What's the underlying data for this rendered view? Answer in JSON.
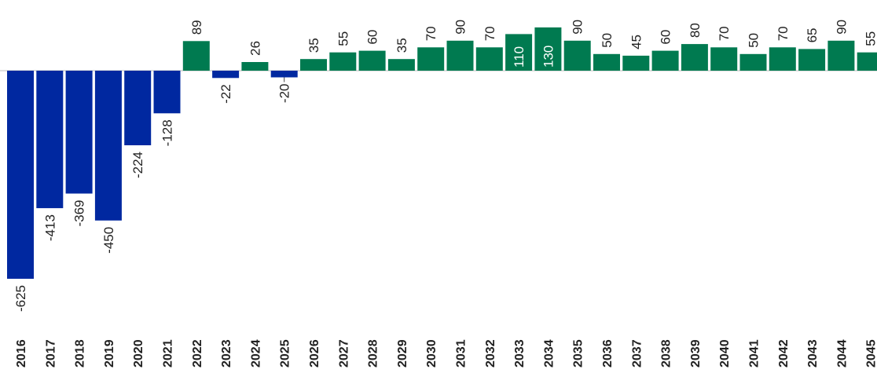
{
  "chart_data": {
    "type": "bar",
    "title": "",
    "xlabel": "",
    "ylabel": "",
    "ylim": [
      -625,
      130
    ],
    "grid": false,
    "legend": "none",
    "colors": {
      "negative": "#0028A0",
      "positive": "#007A50",
      "forecast_negative": "#0028A0",
      "forecast_positive": "#007A50"
    },
    "categories": [
      "2016",
      "2017",
      "2018",
      "2019",
      "2020",
      "2021",
      "2022",
      "2023",
      "2024",
      "2025",
      "2026",
      "2027",
      "2028",
      "2029",
      "2030",
      "2031",
      "2032",
      "2033",
      "2034",
      "2035",
      "2036",
      "2037",
      "2038",
      "2039",
      "2040",
      "2041",
      "2042",
      "2043",
      "2044",
      "2045"
    ],
    "values": [
      -625,
      -413,
      -369,
      -450,
      -224,
      -128,
      89,
      -22,
      26,
      -20,
      35,
      55,
      60,
      35,
      70,
      90,
      70,
      110,
      130,
      90,
      50,
      45,
      60,
      80,
      70,
      50,
      70,
      65,
      90,
      55
    ],
    "labels": [
      "-625",
      "-413",
      "-369",
      "-450",
      "-224",
      "-128",
      "89",
      "-22",
      "26",
      "-20",
      "35",
      "55",
      "60",
      "35",
      "70",
      "90",
      "70",
      "110",
      "130",
      "90",
      "50",
      "45",
      "60",
      "80",
      "70",
      "50",
      "70",
      "65",
      "90",
      "55"
    ]
  }
}
